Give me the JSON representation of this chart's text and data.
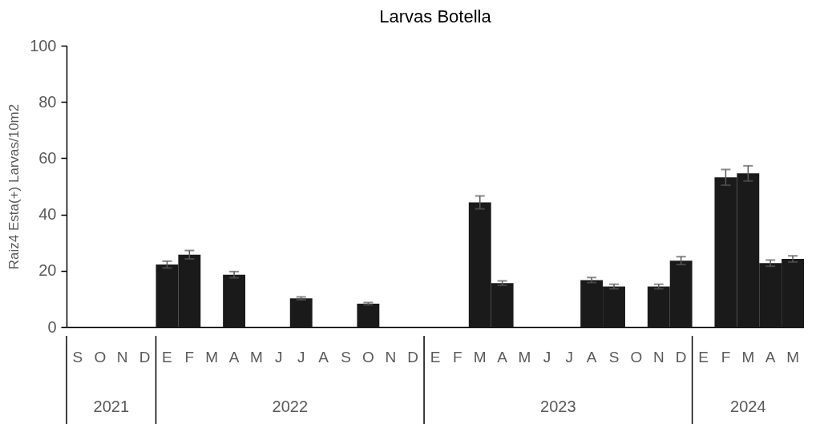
{
  "chart_data": {
    "type": "bar",
    "title": "Larvas  Botella",
    "ylabel": "Raiz4 Esta(+) Larvas/10m2",
    "categories": [
      "S",
      "O",
      "N",
      "D",
      "E",
      "F",
      "M",
      "A",
      "M",
      "J",
      "J",
      "A",
      "S",
      "O",
      "N",
      "D",
      "E",
      "F",
      "M",
      "A",
      "M",
      "J",
      "J",
      "A",
      "S",
      "O",
      "N",
      "D",
      "E",
      "F",
      "M",
      "A",
      "M"
    ],
    "values": [
      0,
      0,
      0,
      0,
      22.2,
      25.7,
      0,
      18.6,
      0,
      0,
      10.2,
      0,
      0,
      8.3,
      0,
      0,
      0,
      0,
      44.3,
      15.6,
      0,
      0,
      0,
      16.7,
      14.4,
      0,
      14.4,
      23.6,
      0,
      53.2,
      54.6,
      22.7,
      24.2
    ],
    "errors": [
      null,
      null,
      null,
      null,
      1.2,
      1.5,
      null,
      1.1,
      null,
      null,
      0.5,
      null,
      null,
      0.4,
      null,
      null,
      null,
      null,
      2.3,
      0.8,
      null,
      null,
      null,
      0.9,
      0.8,
      null,
      0.8,
      1.4,
      null,
      2.8,
      2.7,
      1.1,
      1.1
    ],
    "color": "#1a1a1a",
    "ylim": [
      0,
      100
    ],
    "yticks": [
      0,
      20,
      40,
      60,
      80,
      100
    ],
    "annotations": [
      "2021",
      "2022",
      "2023",
      "2024"
    ]
  }
}
